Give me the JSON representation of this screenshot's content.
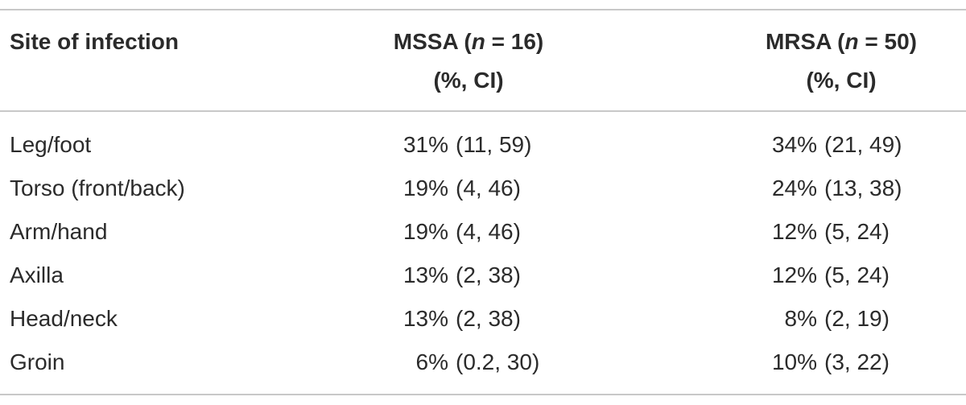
{
  "table": {
    "header": {
      "site": "Site of infection",
      "mssa": {
        "before": "MSSA (",
        "italic": "n",
        "after": " = 16)",
        "line2": "(%, CI)"
      },
      "mrsa": {
        "before": "MRSA (",
        "italic": "n",
        "after": " = 50)",
        "line2": "(%, CI)"
      }
    },
    "rows": [
      {
        "site": "Leg/foot",
        "mssa": {
          "pct": "31%",
          "ci": "(11, 59)"
        },
        "mrsa": {
          "pct": "34%",
          "ci": "(21, 49)"
        }
      },
      {
        "site": "Torso (front/back)",
        "mssa": {
          "pct": "19%",
          "ci": "(4, 46)"
        },
        "mrsa": {
          "pct": "24%",
          "ci": "(13, 38)"
        }
      },
      {
        "site": "Arm/hand",
        "mssa": {
          "pct": "19%",
          "ci": "(4, 46)"
        },
        "mrsa": {
          "pct": "12%",
          "ci": "(5, 24)"
        }
      },
      {
        "site": "Axilla",
        "mssa": {
          "pct": "13%",
          "ci": "(2, 38)"
        },
        "mrsa": {
          "pct": "12%",
          "ci": "(5, 24)"
        }
      },
      {
        "site": "Head/neck",
        "mssa": {
          "pct": "13%",
          "ci": "(2, 38)"
        },
        "mrsa": {
          "pct": "8%",
          "ci": "(2, 19)"
        }
      },
      {
        "site": "Groin",
        "mssa": {
          "pct": "6%",
          "ci": "(0.2, 30)"
        },
        "mrsa": {
          "pct": "10%",
          "ci": "(3, 22)"
        }
      }
    ]
  }
}
